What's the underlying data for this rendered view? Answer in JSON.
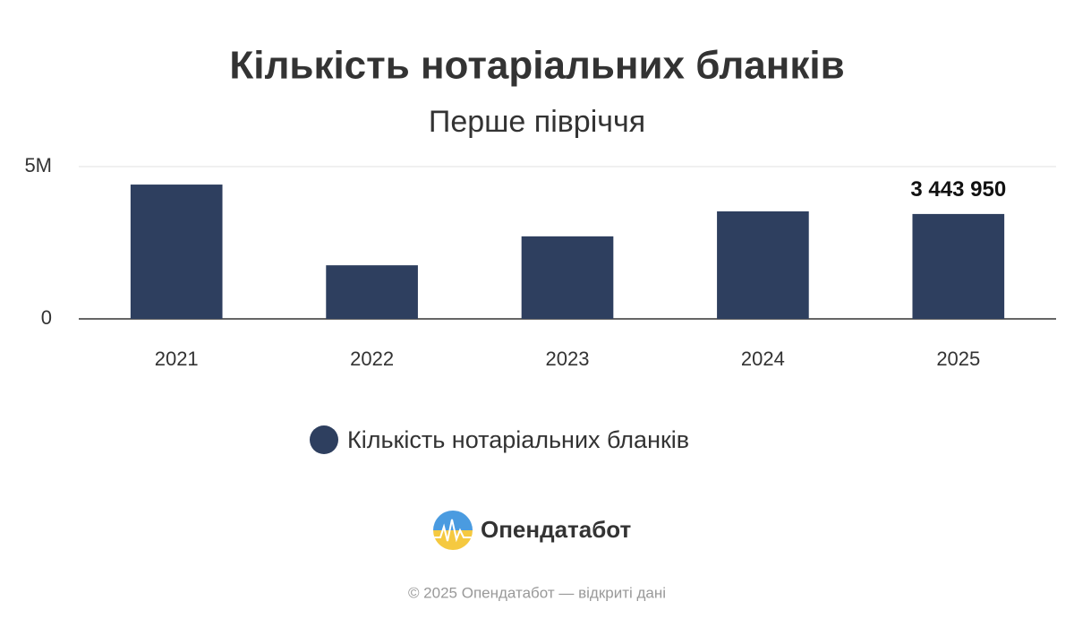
{
  "chart_data": {
    "type": "bar",
    "title": "Кількість нотаріальних бланків",
    "subtitle": "Перше півріччя",
    "categories": [
      "2021",
      "2022",
      "2023",
      "2024",
      "2025"
    ],
    "series": [
      {
        "name": "Кількість нотаріальних бланків",
        "color": "#2e3f5f",
        "values": [
          4410000,
          1760000,
          2710000,
          3530000,
          3443950
        ],
        "value_labels": [
          null,
          null,
          null,
          null,
          "3 443 950"
        ]
      }
    ],
    "ylim": [
      0,
      5000000
    ],
    "yticks": [
      0,
      {
        "value": 5000000,
        "label": "5M"
      }
    ],
    "grid": true,
    "legend": "bottom"
  },
  "logo_text": "Опендатабот",
  "footer": "© 2025 Опендатабот — відкриті дані"
}
